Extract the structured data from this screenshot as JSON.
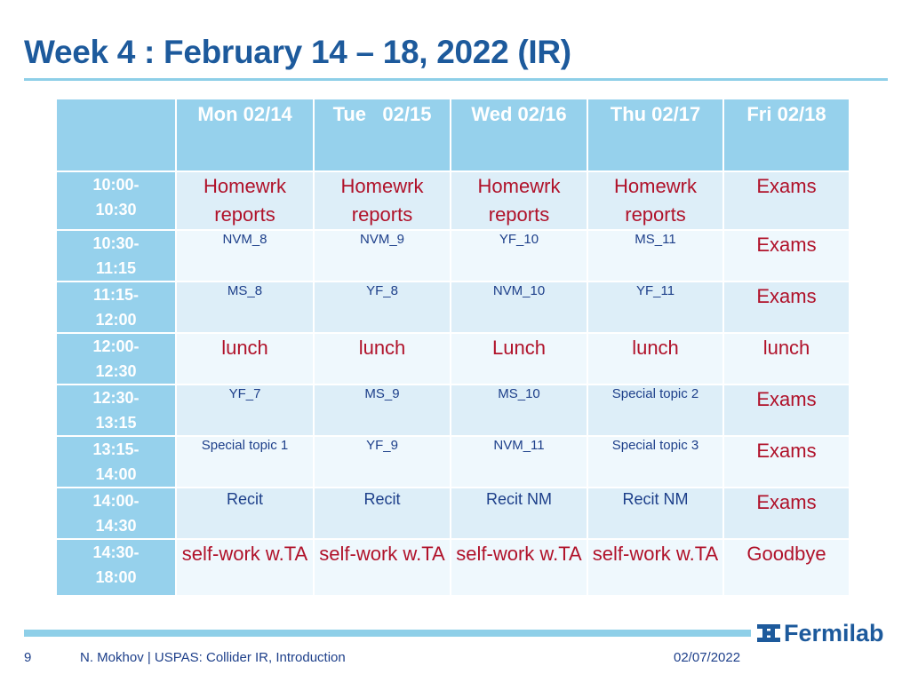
{
  "slide": {
    "title": "Week 4 : February 14 – 18, 2022 (IR)"
  },
  "schedule": {
    "days": [
      "Mon 02/14",
      "Tue   02/15",
      "Wed 02/16",
      "Thu 02/17",
      "Fri 02/18"
    ],
    "rows": [
      {
        "time_a": "10:00-",
        "time_b": "10:30",
        "cells": [
          "Homewrk reports",
          "Homewrk reports",
          "Homewrk reports",
          "Homewrk reports",
          "Exams"
        ]
      },
      {
        "time_a": "10:30-",
        "time_b": "11:15",
        "cells": [
          "NVM_8",
          "NVM_9",
          "YF_10",
          "MS_11",
          "Exams"
        ]
      },
      {
        "time_a": "11:15-",
        "time_b": "12:00",
        "cells": [
          "MS_8",
          "YF_8",
          "NVM_10",
          "YF_11",
          "Exams"
        ]
      },
      {
        "time_a": "12:00-",
        "time_b": "12:30",
        "cells": [
          "lunch",
          "lunch",
          "Lunch",
          "lunch",
          "lunch"
        ]
      },
      {
        "time_a": "12:30-",
        "time_b": "13:15",
        "cells": [
          "YF_7",
          "MS_9",
          "MS_10",
          "Special topic 2",
          "Exams"
        ]
      },
      {
        "time_a": "13:15-",
        "time_b": "14:00",
        "cells": [
          "Special topic 1",
          "YF_9",
          "NVM_11",
          "Special topic 3",
          "Exams"
        ]
      },
      {
        "time_a": "14:00-",
        "time_b": "14:30",
        "cells": [
          "Recit",
          "Recit",
          "Recit NM",
          "Recit NM",
          "Exams"
        ]
      },
      {
        "time_a": "14:30-",
        "time_b": "18:00",
        "cells": [
          "self-work w.TA",
          "self-work w.TA",
          "self-work w.TA",
          "self-work w.TA",
          "Goodbye"
        ]
      }
    ]
  },
  "footer": {
    "page_number": "9",
    "author_line": "N. Mokhov | USPAS: Collider IR, Introduction",
    "date": "02/07/2022",
    "logo_text": "Fermilab",
    "logo_icon": "fermilab-logo-icon"
  },
  "colors": {
    "title": "#1d5a9c",
    "header_fill": "#96d1ec",
    "row_dark": "#ddeef8",
    "row_light": "#eff8fd",
    "red_text": "#b0122a",
    "blue_text": "#1d3f8a"
  }
}
